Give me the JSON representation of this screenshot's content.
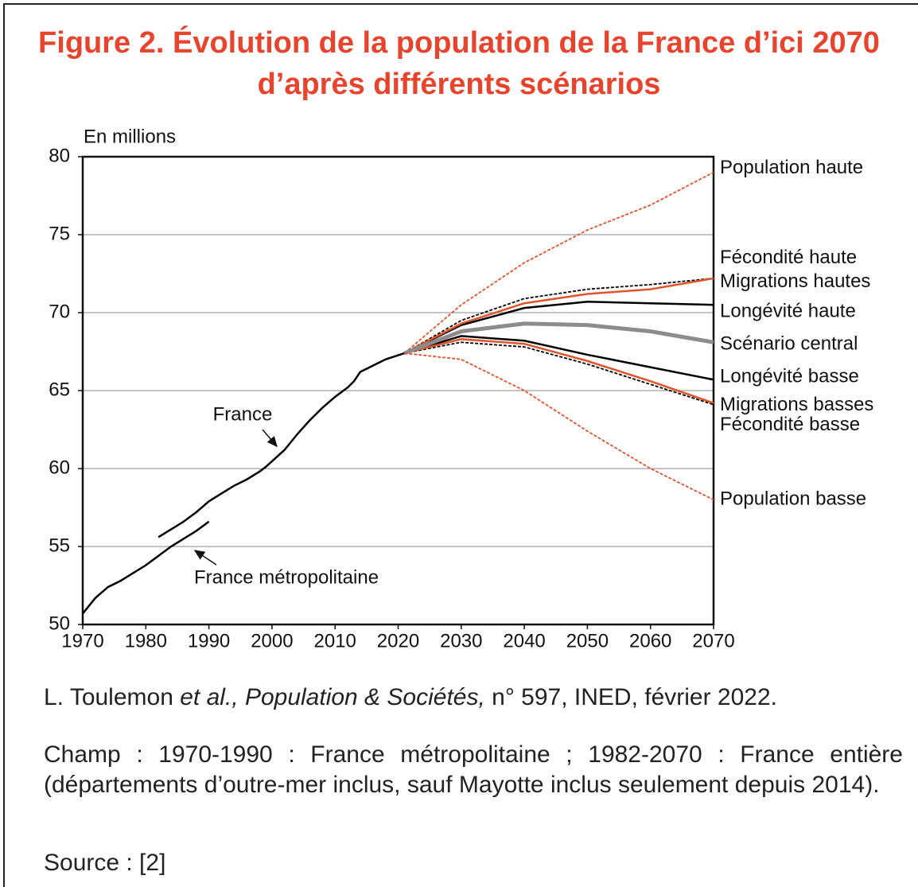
{
  "chart_data": {
    "type": "line",
    "title": "Figure 2. Évolution de la population de la France d’ici 2070 d’après différents scénarios",
    "y_axis_label": "En millions",
    "annotations": [
      "France",
      "France métropolitaine"
    ],
    "xlim": [
      1970,
      2070
    ],
    "xticks": [
      1970,
      1980,
      1990,
      2000,
      2010,
      2020,
      2030,
      2040,
      2050,
      2060,
      2070
    ],
    "ylim": [
      50,
      80
    ],
    "yticks": [
      50,
      55,
      60,
      65,
      70,
      75,
      80
    ],
    "grid": true,
    "series": [
      {
        "color": "#000000",
        "line_style": "solid",
        "x": [
          1970,
          1972,
          1974,
          1976,
          1978,
          1980,
          1982,
          1984,
          1986,
          1988,
          1990
        ],
        "values": [
          50.7,
          51.7,
          52.4,
          52.8,
          53.3,
          53.8,
          54.4,
          55.0,
          55.5,
          56.0,
          56.6
        ]
      },
      {
        "color": "#000000",
        "line_style": "solid",
        "x": [
          1982,
          1984,
          1986,
          1988,
          1990,
          1992,
          1994,
          1996,
          1998,
          1999,
          2002,
          2004,
          2006,
          2008,
          2010,
          2012,
          2013,
          2014,
          2016,
          2018,
          2021
        ],
        "values": [
          55.6,
          56.1,
          56.6,
          57.2,
          57.9,
          58.4,
          58.9,
          59.3,
          59.8,
          60.1,
          61.2,
          62.2,
          63.1,
          63.9,
          64.6,
          65.2,
          65.6,
          66.2,
          66.6,
          67.0,
          67.4
        ]
      },
      {
        "name": "Population haute",
        "color": "#e0542c",
        "line_style": "dashed",
        "x": [
          2021,
          2030,
          2040,
          2050,
          2060,
          2070
        ],
        "values": [
          67.4,
          70.5,
          73.2,
          75.3,
          76.9,
          79.0
        ]
      },
      {
        "name": "Fécondité haute",
        "color": "#000000",
        "line_style": "dashed",
        "x": [
          2021,
          2030,
          2040,
          2050,
          2060,
          2070
        ],
        "values": [
          67.4,
          69.5,
          70.9,
          71.5,
          71.8,
          72.2
        ]
      },
      {
        "name": "Migrations hautes",
        "color": "#e0542c",
        "line_style": "solid",
        "x": [
          2021,
          2030,
          2040,
          2050,
          2060,
          2070
        ],
        "values": [
          67.4,
          69.3,
          70.6,
          71.2,
          71.5,
          72.2
        ]
      },
      {
        "name": "Longévité haute",
        "color": "#000000",
        "line_style": "solid",
        "x": [
          2021,
          2030,
          2040,
          2050,
          2060,
          2070
        ],
        "values": [
          67.4,
          69.2,
          70.3,
          70.7,
          70.6,
          70.5
        ]
      },
      {
        "name": "Scénario central",
        "color": "#8c8c8c",
        "line_style": "solid",
        "x": [
          2021,
          2030,
          2040,
          2050,
          2060,
          2070
        ],
        "values": [
          67.4,
          68.8,
          69.3,
          69.2,
          68.8,
          68.1
        ]
      },
      {
        "name": "Longévité basse",
        "color": "#000000",
        "line_style": "solid",
        "x": [
          2021,
          2030,
          2040,
          2050,
          2060,
          2070
        ],
        "values": [
          67.4,
          68.5,
          68.2,
          67.3,
          66.5,
          65.7
        ]
      },
      {
        "name": "Migrations basses",
        "color": "#e0542c",
        "line_style": "solid",
        "x": [
          2021,
          2030,
          2040,
          2050,
          2060,
          2070
        ],
        "values": [
          67.4,
          68.3,
          68.0,
          66.9,
          65.6,
          64.2
        ]
      },
      {
        "name": "Fécondité basse",
        "color": "#000000",
        "line_style": "dashed",
        "x": [
          2021,
          2030,
          2040,
          2050,
          2060,
          2070
        ],
        "values": [
          67.4,
          68.1,
          67.8,
          66.7,
          65.4,
          64.1
        ]
      },
      {
        "name": "Population basse",
        "color": "#e0542c",
        "line_style": "dashed",
        "x": [
          2021,
          2030,
          2040,
          2050,
          2060,
          2070
        ],
        "values": [
          67.4,
          67.0,
          65.0,
          62.4,
          60.0,
          58.0
        ]
      }
    ],
    "source": {
      "author": "L. Toulemon ",
      "italic": "et al., Population & Sociétés,",
      "rest": " n° 597, INED, février 2022."
    },
    "notes": [
      "Champ : 1970-1990 : France métropolitaine ; 1982-2070 : France entière (départements d’outre-mer inclus, sauf Mayotte inclus seulement depuis 2014).",
      "Source : [2]"
    ]
  }
}
